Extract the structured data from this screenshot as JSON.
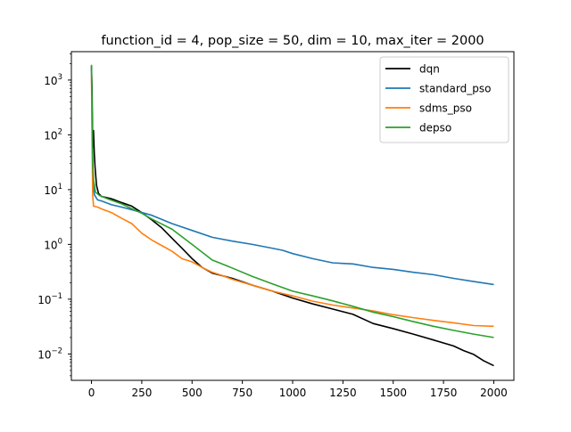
{
  "chart_data": {
    "type": "line",
    "title": "function_id = 4, pop_size = 50, dim = 10, max_iter = 2000",
    "xlabel": "",
    "ylabel": "",
    "yscale": "log",
    "xlim": [
      -100,
      2100
    ],
    "ylim": [
      0.0033,
      3300
    ],
    "x_ticks": [
      0,
      250,
      500,
      750,
      1000,
      1250,
      1500,
      1750,
      2000
    ],
    "x_tick_labels": [
      "0",
      "250",
      "500",
      "750",
      "1000",
      "1250",
      "1500",
      "1750",
      "2000"
    ],
    "y_ticks": [
      0.01,
      0.1,
      1,
      10,
      100,
      1000
    ],
    "y_tick_labels": [
      {
        "base": "10",
        "exp": "−2"
      },
      {
        "base": "10",
        "exp": "−1"
      },
      {
        "base": "10",
        "exp": "0"
      },
      {
        "base": "10",
        "exp": "1"
      },
      {
        "base": "10",
        "exp": "2"
      },
      {
        "base": "10",
        "exp": "3"
      }
    ],
    "grid": false,
    "legend_position": "upper-right",
    "series": [
      {
        "name": "dqn",
        "color": "#000000",
        "points": [
          [
            0,
            1800
          ],
          [
            3,
            600
          ],
          [
            6,
            60
          ],
          [
            10,
            120
          ],
          [
            14,
            45
          ],
          [
            18,
            25
          ],
          [
            25,
            12
          ],
          [
            35,
            8.5
          ],
          [
            50,
            7.5
          ],
          [
            100,
            6.8
          ],
          [
            150,
            5.8
          ],
          [
            200,
            5.0
          ],
          [
            250,
            3.8
          ],
          [
            300,
            2.8
          ],
          [
            350,
            2.0
          ],
          [
            400,
            1.3
          ],
          [
            450,
            0.85
          ],
          [
            500,
            0.55
          ],
          [
            550,
            0.38
          ],
          [
            600,
            0.3
          ],
          [
            700,
            0.24
          ],
          [
            800,
            0.18
          ],
          [
            900,
            0.14
          ],
          [
            1000,
            0.105
          ],
          [
            1100,
            0.082
          ],
          [
            1200,
            0.066
          ],
          [
            1300,
            0.053
          ],
          [
            1400,
            0.036
          ],
          [
            1500,
            0.029
          ],
          [
            1600,
            0.023
          ],
          [
            1700,
            0.018
          ],
          [
            1800,
            0.014
          ],
          [
            1850,
            0.0115
          ],
          [
            1900,
            0.0098
          ],
          [
            1950,
            0.0075
          ],
          [
            2000,
            0.0061
          ]
        ]
      },
      {
        "name": "standard_pso",
        "color": "#1f77b4",
        "points": [
          [
            0,
            1700
          ],
          [
            3,
            150
          ],
          [
            8,
            12
          ],
          [
            15,
            8
          ],
          [
            30,
            6.5
          ],
          [
            50,
            6.2
          ],
          [
            100,
            5.3
          ],
          [
            150,
            4.8
          ],
          [
            200,
            4.3
          ],
          [
            300,
            3.4
          ],
          [
            400,
            2.4
          ],
          [
            500,
            1.8
          ],
          [
            600,
            1.35
          ],
          [
            700,
            1.15
          ],
          [
            800,
            1.0
          ],
          [
            900,
            0.85
          ],
          [
            950,
            0.78
          ],
          [
            1000,
            0.68
          ],
          [
            1100,
            0.55
          ],
          [
            1200,
            0.46
          ],
          [
            1300,
            0.44
          ],
          [
            1400,
            0.38
          ],
          [
            1500,
            0.35
          ],
          [
            1600,
            0.31
          ],
          [
            1700,
            0.28
          ],
          [
            1800,
            0.24
          ],
          [
            1900,
            0.21
          ],
          [
            2000,
            0.185
          ]
        ]
      },
      {
        "name": "sdms_pso",
        "color": "#ff7f0e",
        "points": [
          [
            0,
            1200
          ],
          [
            3,
            80
          ],
          [
            6,
            8
          ],
          [
            10,
            5.0
          ],
          [
            30,
            4.8
          ],
          [
            60,
            4.3
          ],
          [
            100,
            3.8
          ],
          [
            150,
            3.0
          ],
          [
            200,
            2.4
          ],
          [
            250,
            1.6
          ],
          [
            300,
            1.2
          ],
          [
            350,
            0.95
          ],
          [
            400,
            0.75
          ],
          [
            450,
            0.55
          ],
          [
            500,
            0.48
          ],
          [
            550,
            0.38
          ],
          [
            600,
            0.31
          ],
          [
            650,
            0.27
          ],
          [
            700,
            0.23
          ],
          [
            800,
            0.18
          ],
          [
            900,
            0.14
          ],
          [
            1000,
            0.115
          ],
          [
            1100,
            0.092
          ],
          [
            1200,
            0.078
          ],
          [
            1300,
            0.069
          ],
          [
            1400,
            0.061
          ],
          [
            1500,
            0.052
          ],
          [
            1600,
            0.046
          ],
          [
            1700,
            0.041
          ],
          [
            1800,
            0.037
          ],
          [
            1900,
            0.033
          ],
          [
            2000,
            0.032
          ]
        ]
      },
      {
        "name": "depso",
        "color": "#2ca02c",
        "points": [
          [
            0,
            1900
          ],
          [
            3,
            300
          ],
          [
            6,
            30
          ],
          [
            10,
            15
          ],
          [
            20,
            9
          ],
          [
            40,
            7.8
          ],
          [
            80,
            6.8
          ],
          [
            150,
            5.5
          ],
          [
            200,
            4.5
          ],
          [
            250,
            3.7
          ],
          [
            300,
            2.9
          ],
          [
            400,
            1.9
          ],
          [
            500,
            1.0
          ],
          [
            600,
            0.52
          ],
          [
            700,
            0.37
          ],
          [
            800,
            0.26
          ],
          [
            900,
            0.19
          ],
          [
            1000,
            0.14
          ],
          [
            1100,
            0.115
          ],
          [
            1200,
            0.093
          ],
          [
            1300,
            0.074
          ],
          [
            1400,
            0.058
          ],
          [
            1500,
            0.048
          ],
          [
            1600,
            0.039
          ],
          [
            1700,
            0.032
          ],
          [
            1800,
            0.027
          ],
          [
            1900,
            0.023
          ],
          [
            2000,
            0.02
          ]
        ]
      }
    ]
  }
}
